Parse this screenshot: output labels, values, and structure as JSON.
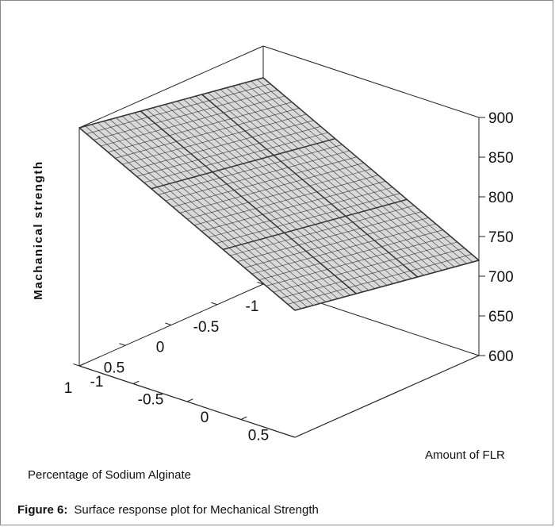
{
  "chart_data": {
    "type": "surface",
    "zlabel": "Machanical strength",
    "xlabel": "Percentage of Sodium Alginate",
    "ylabel": "Amount of FLR",
    "x_ticks": [
      "-1",
      "-0.5",
      "0",
      "0.5",
      "1"
    ],
    "y_ticks": [
      "-1",
      "-0.5",
      "0",
      "0.5"
    ],
    "z_ticks": [
      "900",
      "850",
      "800",
      "750",
      "700",
      "650",
      "600"
    ],
    "xlim": [
      -1,
      1
    ],
    "ylim": [
      -1,
      1
    ],
    "zlim": [
      600,
      900
    ],
    "surface_corners": [
      {
        "x": -1,
        "y": 1,
        "z": 720
      },
      {
        "x": 1,
        "y": 1,
        "z": 760
      },
      {
        "x": -1,
        "y": -1,
        "z": 860
      },
      {
        "x": 1,
        "y": -1,
        "z": 900
      }
    ],
    "grid": true
  },
  "caption": {
    "label": "Figure 6:",
    "text": "Surface response plot for Mechanical Strength"
  }
}
